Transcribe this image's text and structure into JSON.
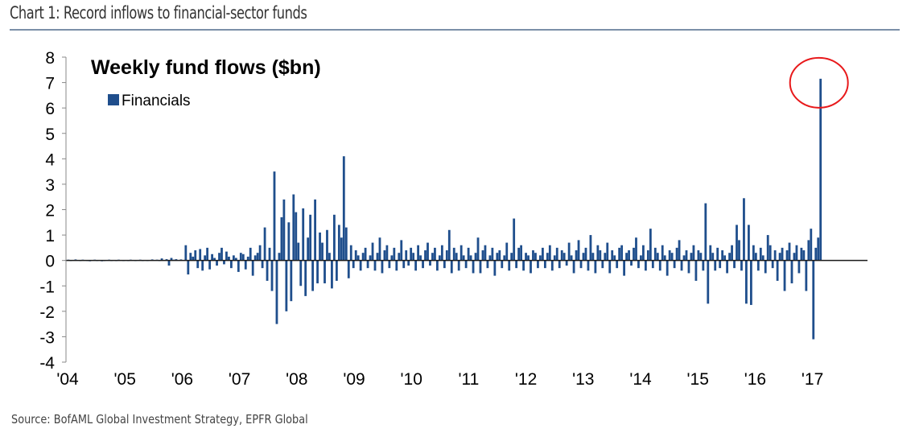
{
  "page": {
    "title": "Chart 1: Record inflows to financial-sector funds",
    "source": "Source: BofAML Global Investment Strategy, EPFR Global"
  },
  "colors": {
    "bar": "#1f4e8c",
    "axis": "#888888",
    "zero_line": "#1a1a1a",
    "highlight": "#e8191b",
    "rule": "#7b8fa8"
  },
  "chart_data": {
    "type": "bar",
    "title": "Weekly fund flows ($bn)",
    "xlabel": "",
    "ylabel": "",
    "ylim": [
      -4,
      8
    ],
    "xlim": [
      2004,
      2017.85
    ],
    "yticks": [
      "8",
      "7",
      "6",
      "5",
      "4",
      "3",
      "2",
      "1",
      "0",
      "-1",
      "-2",
      "-3",
      "-4"
    ],
    "ytick_values": [
      8,
      7,
      6,
      5,
      4,
      3,
      2,
      1,
      0,
      -1,
      -2,
      -3,
      -4
    ],
    "xticks": [
      "'04",
      "'05",
      "'06",
      "'07",
      "'08",
      "'09",
      "'10",
      "'11",
      "'12",
      "'13",
      "'14",
      "'15",
      "'16",
      "'17"
    ],
    "xtick_values": [
      2004,
      2005,
      2006,
      2007,
      2008,
      2009,
      2010,
      2011,
      2012,
      2013,
      2014,
      2015,
      2016,
      2017
    ],
    "legend": {
      "entries": [
        "Financials"
      ],
      "position": "top-left"
    },
    "grid": false,
    "annotation": {
      "type": "circle",
      "target_x": 2017.17,
      "target_y": 7.15,
      "label": ""
    },
    "series": [
      {
        "name": "Financials",
        "x_start": 2004.0,
        "x_step": 0.04,
        "values": [
          0.02,
          0.03,
          0.01,
          0.02,
          0.04,
          0.02,
          0.01,
          0.03,
          0.02,
          0.01,
          -0.02,
          0.02,
          0.03,
          0.01,
          0.02,
          -0.01,
          0.01,
          0.02,
          0.03,
          0.01,
          0.02,
          0.01,
          0.03,
          0.02,
          0.01,
          0.02,
          0.01,
          0.03,
          0.02,
          0.01,
          0.02,
          0.03,
          0.01,
          0.02,
          0.01,
          0.02,
          0.04,
          0.02,
          0.03,
          0.01,
          0.08,
          0.02,
          0.05,
          -0.2,
          0.1,
          0.03,
          0.05,
          0.02,
          0.04,
          0.02,
          0.6,
          -0.55,
          0.3,
          0.15,
          0.4,
          -0.3,
          0.45,
          -0.4,
          0.2,
          0.5,
          -0.35,
          0.25,
          0.1,
          -0.2,
          0.3,
          0.5,
          -0.15,
          0.35,
          0.15,
          -0.3,
          0.2,
          0.1,
          -0.45,
          0.3,
          0.25,
          -0.35,
          0.15,
          0.5,
          -0.6,
          0.2,
          0.3,
          0.6,
          -0.3,
          1.3,
          -0.8,
          0.5,
          -1.2,
          3.5,
          -2.5,
          0.3,
          1.7,
          2.4,
          -2.0,
          1.5,
          -1.6,
          2.6,
          1.9,
          0.7,
          -1.0,
          2.05,
          -1.4,
          0.9,
          1.8,
          -1.2,
          2.4,
          -0.9,
          1.1,
          0.7,
          -0.9,
          1.2,
          0.3,
          -1.1,
          1.8,
          -0.8,
          1.4,
          0.9,
          4.1,
          1.3,
          -0.7,
          0.6,
          -0.3,
          0.4,
          0.2,
          -0.4,
          0.3,
          0.5,
          -0.3,
          0.2,
          0.7,
          -0.4,
          0.3,
          0.9,
          -0.5,
          0.4,
          0.6,
          -0.3,
          0.2,
          0.5,
          -0.4,
          0.3,
          0.8,
          -0.3,
          0.4,
          -0.2,
          0.5,
          0.3,
          -0.4,
          0.6,
          0.2,
          -0.3,
          0.4,
          0.7,
          -0.2,
          0.3,
          0.5,
          -0.4,
          0.2,
          0.6,
          -0.3,
          0.4,
          1.2,
          -0.5,
          0.5,
          0.3,
          -0.4,
          0.6,
          0.2,
          -0.3,
          0.5,
          0.2,
          -0.5,
          0.3,
          0.9,
          -0.5,
          0.4,
          0.6,
          -0.3,
          0.2,
          0.5,
          -0.6,
          0.3,
          0.4,
          -0.3,
          0.2,
          0.7,
          -0.4,
          0.3,
          1.65,
          -0.3,
          0.5,
          0.6,
          -0.4,
          0.3,
          0.2,
          -0.5,
          0.4,
          0.3,
          -0.3,
          0.2,
          0.5,
          -0.3,
          0.3,
          0.6,
          -0.4,
          0.2,
          0.5,
          -0.3,
          0.4,
          0.3,
          -0.2,
          0.7,
          0.2,
          -0.5,
          0.4,
          0.8,
          -0.3,
          0.3,
          0.5,
          -0.4,
          1.0,
          0.3,
          -0.5,
          0.6,
          0.4,
          -0.3,
          0.3,
          0.7,
          -0.5,
          0.4,
          0.2,
          -0.3,
          0.5,
          0.6,
          -0.6,
          0.3,
          0.4,
          -0.2,
          0.5,
          0.9,
          -0.3,
          0.2,
          0.6,
          -0.4,
          0.4,
          1.25,
          -0.3,
          0.5,
          0.3,
          -0.4,
          0.6,
          0.2,
          -0.6,
          0.4,
          0.3,
          -0.3,
          0.5,
          0.8,
          -0.4,
          0.2,
          0.4,
          -0.5,
          0.3,
          0.6,
          -0.8,
          0.4,
          0.3,
          -0.4,
          2.25,
          -1.7,
          0.6,
          0.3,
          -0.4,
          0.5,
          -0.3,
          0.4,
          0.2,
          -0.5,
          0.3,
          0.6,
          -0.3,
          1.4,
          0.8,
          -0.4,
          2.45,
          -1.7,
          1.4,
          -1.75,
          0.6,
          0.3,
          -0.4,
          0.5,
          0.2,
          -0.5,
          1.0,
          0.6,
          -0.3,
          0.4,
          -0.8,
          0.3,
          0.5,
          -1.2,
          0.4,
          0.7,
          -0.9,
          0.3,
          0.6,
          -0.5,
          0.5,
          0.4,
          -1.2,
          0.8,
          1.25,
          -3.1,
          0.5,
          0.9,
          7.15
        ]
      }
    ]
  }
}
